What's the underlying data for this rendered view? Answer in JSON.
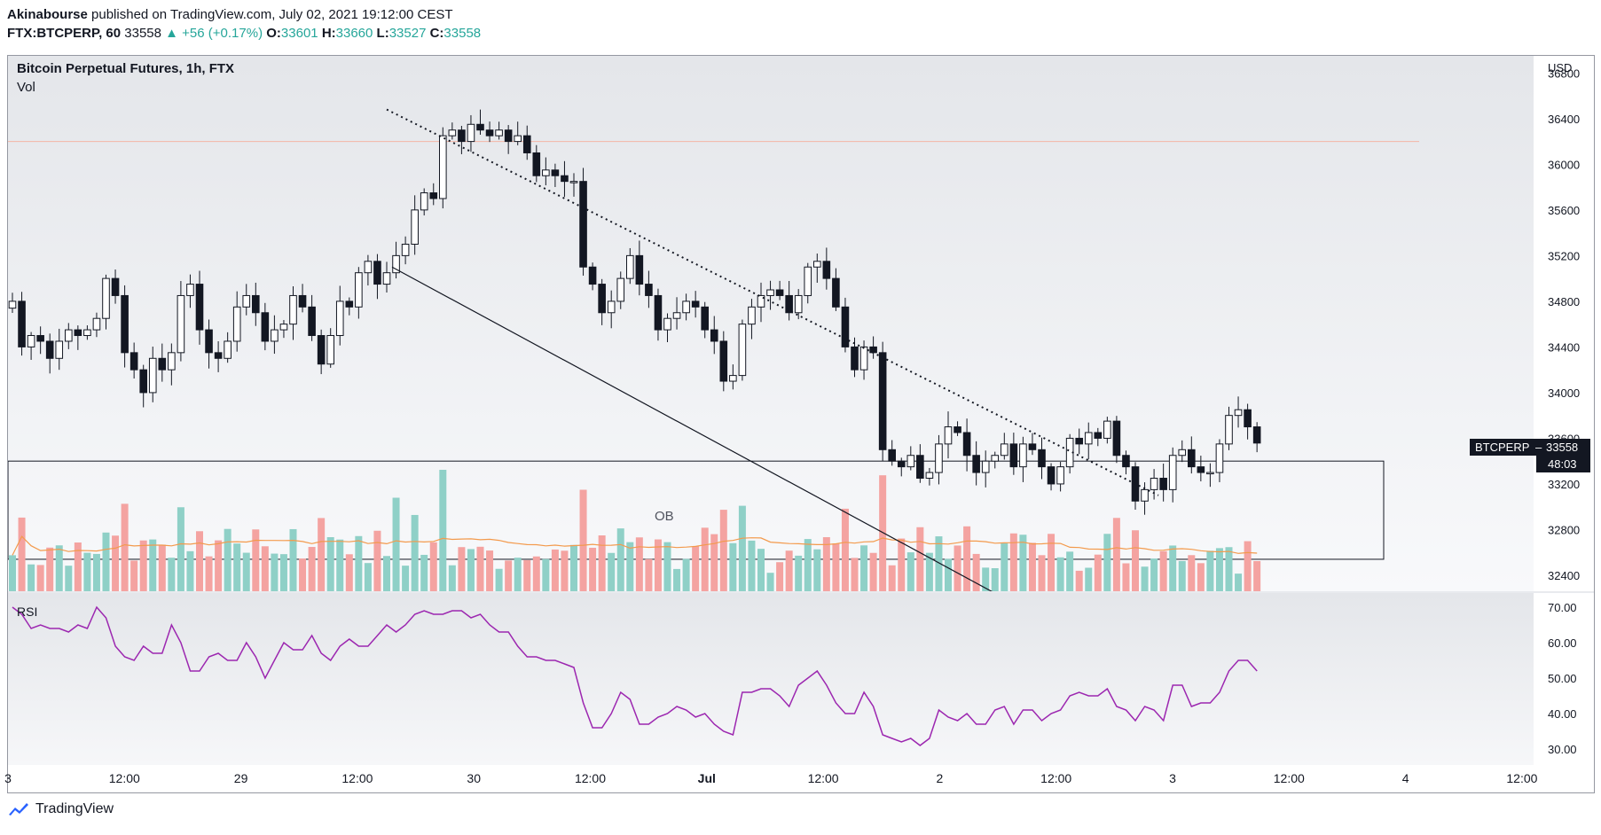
{
  "header": {
    "author": "Akinabourse",
    "published_text": "published on TradingView.com, July 02, 2021 19:12:00 CEST",
    "symbol_line": "FTX:BTCPERP, 60",
    "last": "33558",
    "change": "▲ +56 (+0.17%)",
    "o_label": "O:",
    "o": "33601",
    "h_label": "H:",
    "h": "33660",
    "l_label": "L:",
    "l": "33527",
    "c_label": "C:",
    "c": "33558"
  },
  "footer": {
    "brand": "TradingView"
  },
  "colors": {
    "up": "#26a69a",
    "down": "#ef5350",
    "vol_up": "#8fd0c7",
    "vol_down": "#f4a3a1",
    "rsi": "#9c27b0",
    "vol_ma": "#f39a4c",
    "resistance": "#f4b6a6",
    "pane_bg": "#eceef2"
  },
  "chart_data": [
    {
      "type": "candlestick",
      "title": "Bitcoin Perpetual Futures, 1h, FTX",
      "volume_label": "Vol",
      "currency": "USD",
      "y_ticks": [
        32400,
        32800,
        33200,
        33600,
        34000,
        34400,
        34800,
        35200,
        35600,
        36000,
        36400,
        36800
      ],
      "ylim": [
        32260,
        36950
      ],
      "x_ticks": [
        "3",
        "12:00",
        "29",
        "12:00",
        "30",
        "12:00",
        "Jul",
        "12:00",
        "2",
        "12:00",
        "3",
        "12:00",
        "4",
        "12:00"
      ],
      "bar_interval_hours": 1,
      "approx_closes": [
        34800,
        34400,
        34500,
        34450,
        34300,
        34450,
        34550,
        34500,
        34550,
        34650,
        35000,
        34850,
        34350,
        34200,
        34000,
        34300,
        34200,
        34350,
        34850,
        34950,
        34550,
        34350,
        34300,
        34450,
        34750,
        34850,
        34700,
        34450,
        34550,
        34600,
        34850,
        34750,
        34500,
        34250,
        34500,
        34800,
        34750,
        35050,
        35150,
        34950,
        35050,
        35200,
        35300,
        35600,
        35750,
        35700,
        36250,
        36300,
        36200,
        36350,
        36300,
        36250,
        36300,
        36200,
        36250,
        36100,
        35900,
        35950,
        35900,
        35850,
        35850,
        35100,
        34950,
        34700,
        34800,
        35000,
        35200,
        34950,
        34850,
        34550,
        34650,
        34700,
        34800,
        34750,
        34550,
        34450,
        34100,
        34150,
        34600,
        34750,
        34850,
        34900,
        34850,
        34700,
        34850,
        35100,
        35150,
        35000,
        34750,
        34400,
        34200,
        34400,
        34350,
        33500,
        33400,
        33350,
        33450,
        33250,
        33300,
        33550,
        33700,
        33650,
        33450,
        33300,
        33400,
        33450,
        33550,
        33350,
        33550,
        33500,
        33350,
        33200,
        33350,
        33600,
        33550,
        33650,
        33600,
        33750,
        33450,
        33350,
        33050,
        33150,
        33250,
        33150,
        33450,
        33500,
        33350,
        33300,
        33300,
        33550,
        33800,
        33850,
        33700,
        33558
      ],
      "annotations": [
        {
          "type": "zone",
          "label": "OB",
          "price_from": 32540,
          "price_to": 33400
        },
        {
          "type": "horizontal_line",
          "price": 36200
        },
        {
          "type": "trendline_dotted",
          "from_price": 36480,
          "to_price": 33100
        },
        {
          "type": "trendline_solid",
          "from_price": 35100,
          "to_price": 32250
        }
      ],
      "last_label": {
        "symbol": "BTCPERP",
        "price": "33558",
        "countdown": "48:03"
      }
    },
    {
      "type": "line",
      "title": "RSI",
      "y_ticks": [
        "70.00",
        "60.00",
        "50.00",
        "40.00",
        "30.00"
      ],
      "ylim": [
        25.5,
        74
      ],
      "values": [
        70,
        68,
        64,
        65,
        64,
        64,
        63,
        65,
        64,
        70,
        67,
        59,
        56,
        55,
        59,
        57,
        57,
        65,
        60,
        52,
        52,
        56,
        57,
        55,
        55,
        60,
        56,
        50,
        55,
        60,
        58,
        58,
        62,
        57,
        55,
        59,
        61,
        59,
        59,
        62,
        65,
        63,
        65,
        68,
        69,
        68,
        68,
        69,
        69,
        67,
        68,
        65,
        63,
        63,
        59,
        56,
        56,
        55,
        55,
        54,
        53,
        43,
        36,
        36,
        40,
        46,
        44,
        37,
        37,
        39,
        40,
        42,
        41,
        39,
        40,
        37,
        35,
        34,
        46,
        46,
        47,
        47,
        45,
        42,
        48,
        50,
        52,
        48,
        43,
        40,
        40,
        46,
        42,
        34,
        33,
        32,
        33,
        31,
        33,
        41,
        39,
        38,
        40,
        37,
        37,
        41,
        42,
        37,
        41,
        41,
        38,
        40,
        41,
        45,
        46,
        45,
        45,
        47,
        42,
        41,
        38,
        42,
        41,
        38,
        48,
        48,
        42,
        43,
        43,
        46,
        52,
        55,
        55,
        52
      ]
    }
  ]
}
